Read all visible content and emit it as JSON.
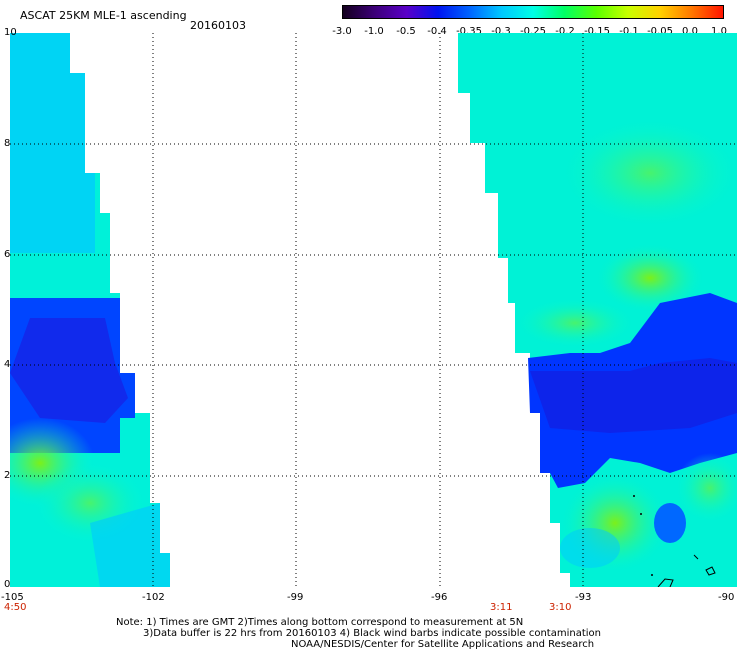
{
  "header": {
    "title": "ASCAT 25KM MLE-1 ascending",
    "date": "20160103"
  },
  "colorbar": {
    "labels": [
      "-3.0",
      "-1.0",
      "-0.5",
      "-0.4",
      "-0.35",
      "-0.3",
      "-0.25",
      "-0.2",
      "-0.15",
      "-0.1",
      "-0.05",
      "0.0",
      "1.0"
    ],
    "colors": [
      "#14001e",
      "#3c0078",
      "#5a00c8",
      "#0014f0",
      "#0064ff",
      "#00c8ff",
      "#00ffe6",
      "#00ff64",
      "#5aff00",
      "#c8ff00",
      "#ffd200",
      "#ff7800",
      "#ff1400"
    ]
  },
  "map": {
    "x_ticks": [
      "-105",
      "-102",
      "-99",
      "-96",
      "-93",
      "-90"
    ],
    "y_ticks": [
      "10",
      "8",
      "6",
      "4",
      "2",
      "0"
    ],
    "time_labels": [
      "4:50",
      "3:11",
      "3:10"
    ],
    "grid": true
  },
  "notes": {
    "line1": "Note: 1) Times are GMT 2)Times along bottom correspond to measurement at 5N",
    "line2": "3)Data buffer is 22 hrs from 20160103 4) Black wind barbs indicate possible contamination",
    "line3": "NOAA/NESDIS/Center for Satellite Applications and Research"
  }
}
